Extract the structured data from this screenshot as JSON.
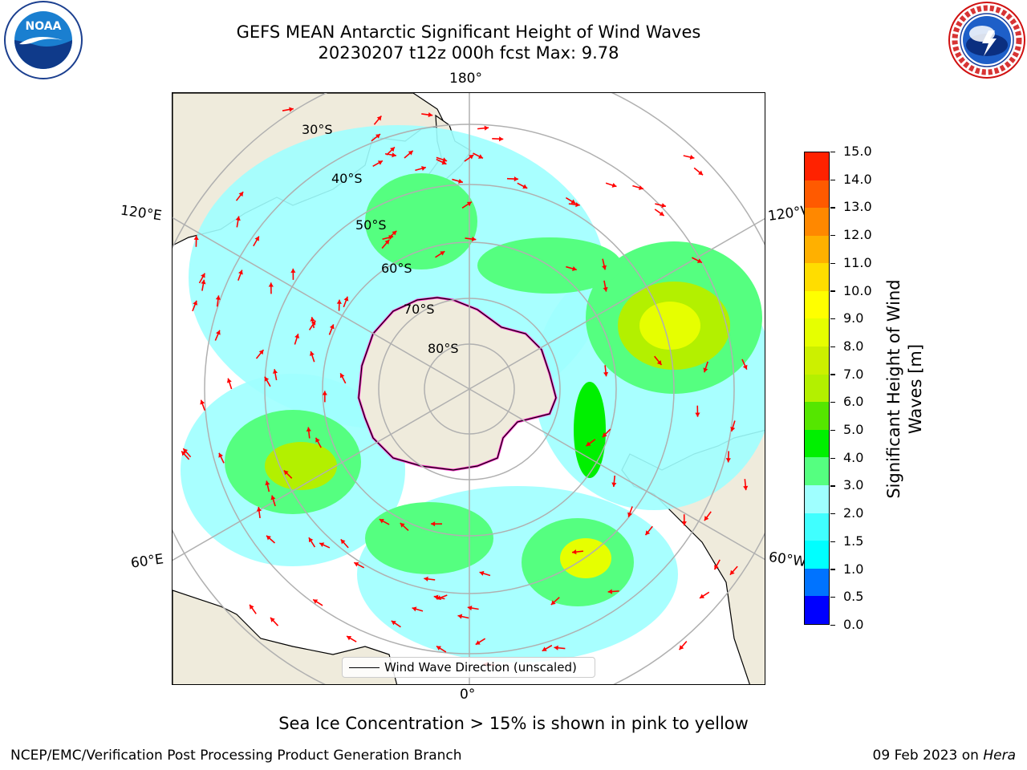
{
  "header": {
    "title_line1": "GEFS MEAN Antarctic Significant Height of Wind Waves",
    "title_line2": "20230207 t12z 000h fcst   Max: 9.78"
  },
  "logos": {
    "left": "noaa-logo",
    "left_text": "NOAA",
    "right": "nws-logo"
  },
  "map": {
    "projection": "south-polar-stereographic",
    "longitude_labels": [
      "180°",
      "120°E",
      "120°W",
      "60°E",
      "60°W",
      "0°"
    ],
    "latitude_labels": [
      "30°S",
      "40°S",
      "50°S",
      "60°S",
      "70°S",
      "80°S"
    ],
    "land_color": "#efebdc",
    "gridline_color": "#b0b0b0",
    "arrow_color": "#ff0000",
    "sea_ice_edge_color": "#ff33cc"
  },
  "legend": {
    "label": "Wind Wave Direction (unscaled)"
  },
  "colorbar": {
    "label": "Significant Height of Wind Waves [m]",
    "label_line1": "Significant Height of Wind",
    "label_line2": "Waves [m]",
    "ticks": [
      "0.0",
      "0.5",
      "1.0",
      "1.5",
      "2.0",
      "3.0",
      "4.0",
      "5.0",
      "6.0",
      "7.0",
      "8.0",
      "9.0",
      "10.0",
      "11.0",
      "12.0",
      "13.0",
      "14.0",
      "15.0"
    ],
    "colors": [
      "#0000ff",
      "#0073ff",
      "#00ffff",
      "#40ffff",
      "#9fffff",
      "#55ff80",
      "#00f000",
      "#55e600",
      "#b3f000",
      "#ccf000",
      "#e6ff00",
      "#ffff00",
      "#ffdd00",
      "#ffb000",
      "#ff8800",
      "#ff5a00",
      "#ff2200"
    ]
  },
  "notes": {
    "sea_ice": "Sea Ice Concentration > 15% is shown in pink to yellow"
  },
  "footer": {
    "left": "NCEP/EMC/Verification Post Processing Product Generation Branch",
    "date": "09 Feb 2023",
    "on": "on",
    "machine": "Hera"
  }
}
